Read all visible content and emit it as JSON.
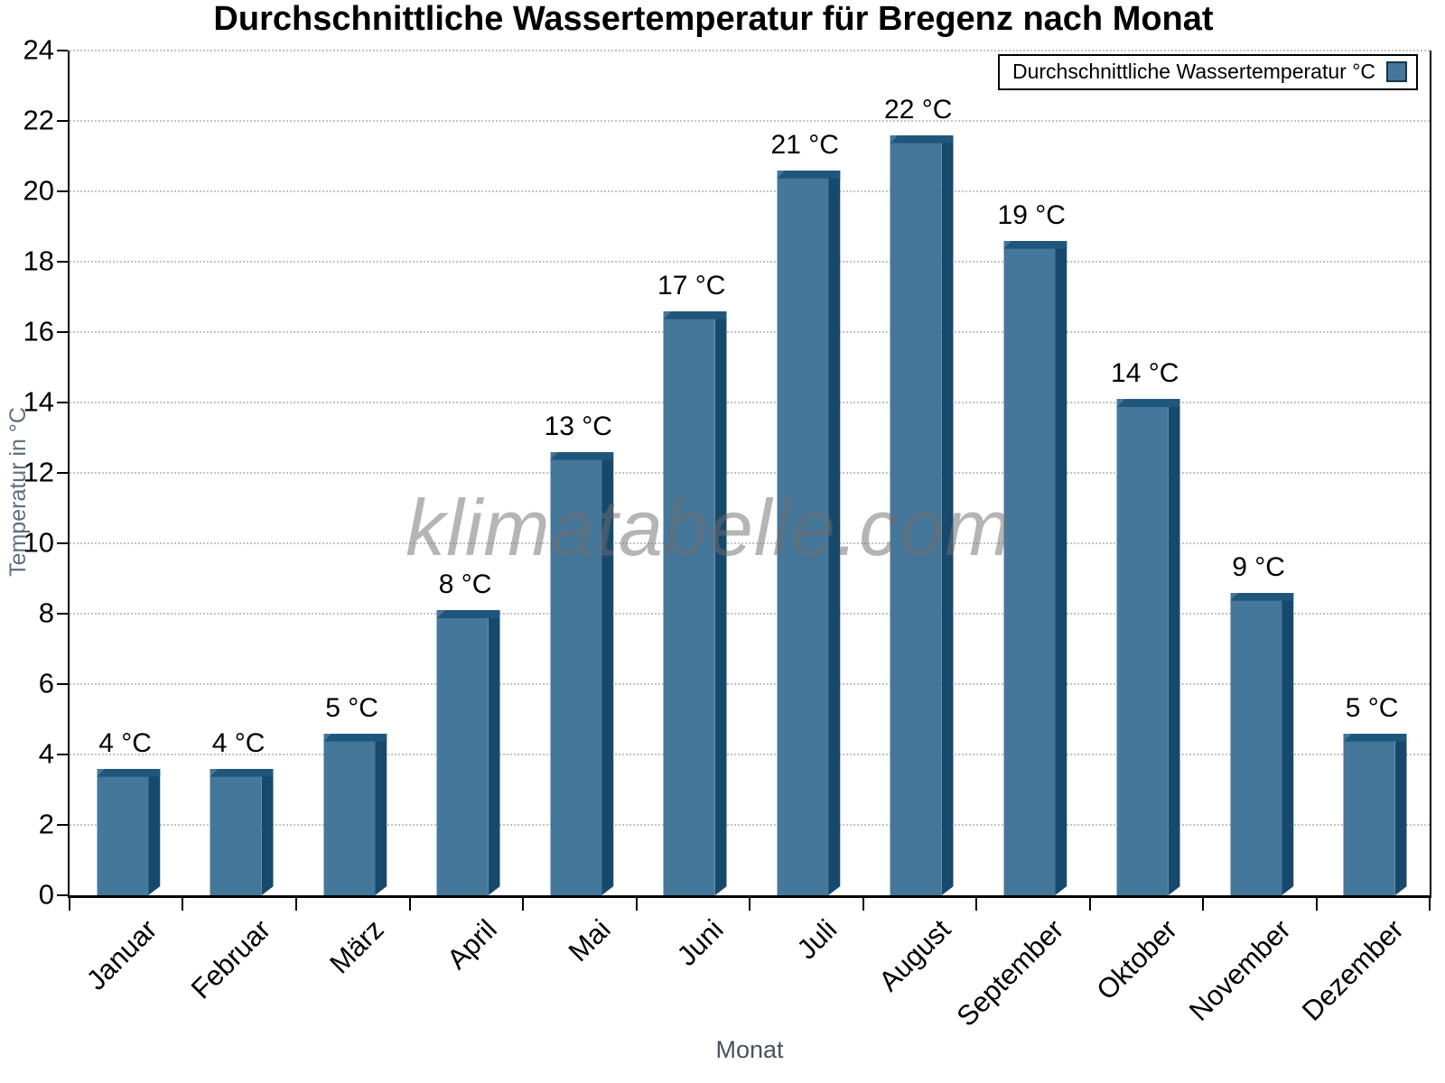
{
  "title": "Durchschnittliche Wassertemperatur für Bregenz nach Monat",
  "watermark": "klimatabelle.com",
  "legend": {
    "label": "Durchschnittliche Wassertemperatur °C"
  },
  "chart_data": {
    "type": "bar",
    "title": "Durchschnittliche Wassertemperatur für Bregenz nach Monat",
    "xlabel": "Monat",
    "ylabel": "Temperatur in °C",
    "ylim": [
      0,
      24
    ],
    "ytick_step": 2,
    "grid": "horizontal-dotted",
    "legend_position": "top-right",
    "legend_entry": "Durchschnittliche Wassertemperatur °C",
    "categories": [
      "Januar",
      "Februar",
      "März",
      "April",
      "Mai",
      "Juni",
      "Juli",
      "August",
      "September",
      "Oktober",
      "November",
      "Dezember"
    ],
    "values": [
      3.6,
      3.6,
      4.6,
      8.1,
      12.6,
      16.6,
      20.6,
      21.6,
      18.6,
      14.1,
      8.6,
      4.6
    ],
    "bar_labels": [
      "4 °C",
      "4 °C",
      "5 °C",
      "8 °C",
      "13 °C",
      "17 °C",
      "21 °C",
      "22 °C",
      "19 °C",
      "14 °C",
      "9 °C",
      "5 °C"
    ],
    "colors": {
      "bar_face": "#45779b",
      "bar_side": "#17496c",
      "bar_top": "#1f567c",
      "grid": "#c4c4c4",
      "axis": "#000000",
      "axis_title": "#5e6e7e"
    }
  }
}
